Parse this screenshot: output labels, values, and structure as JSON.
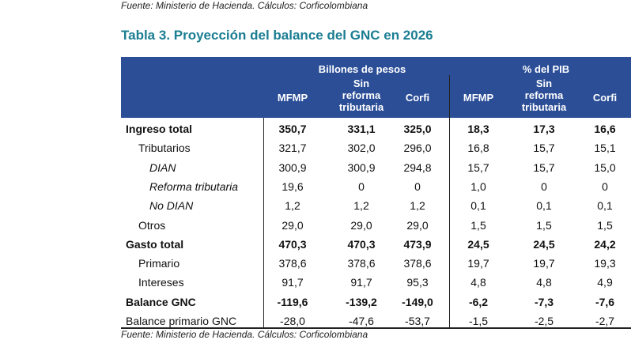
{
  "source_top": "Fuente: Ministerio de Hacienda. Cálculos: Corficolombiana",
  "title": "Tabla 3. Proyección del balance del GNC en 2026",
  "groups": [
    "Billones de pesos",
    "% del PIB"
  ],
  "columns": [
    "MFMP",
    "Sin reforma tributaria",
    "Corfi",
    "MFMP",
    "Sin reforma tributaria",
    "Corfi"
  ],
  "rows": [
    {
      "label": "Ingreso total",
      "style": "bold",
      "values": [
        "350,7",
        "331,1",
        "325,0",
        "18,3",
        "17,3",
        "16,6"
      ]
    },
    {
      "label": "Tributarios",
      "style": "i1",
      "values": [
        "321,7",
        "302,0",
        "296,0",
        "16,8",
        "15,7",
        "15,1"
      ]
    },
    {
      "label": "DIAN",
      "style": "i2",
      "values": [
        "300,9",
        "300,9",
        "294,8",
        "15,7",
        "15,7",
        "15,0"
      ]
    },
    {
      "label": "Reforma tributaria",
      "style": "i2",
      "values": [
        "19,6",
        "0",
        "0",
        "1,0",
        "0",
        "0"
      ]
    },
    {
      "label": "No DIAN",
      "style": "i2",
      "values": [
        "1,2",
        "1,2",
        "1,2",
        "0,1",
        "0,1",
        "0,1"
      ]
    },
    {
      "label": "Otros",
      "style": "i1",
      "values": [
        "29,0",
        "29,0",
        "29,0",
        "1,5",
        "1,5",
        "1,5"
      ]
    },
    {
      "label": "Gasto total",
      "style": "bold",
      "values": [
        "470,3",
        "470,3",
        "473,9",
        "24,5",
        "24,5",
        "24,2"
      ]
    },
    {
      "label": "Primario",
      "style": "i1",
      "values": [
        "378,6",
        "378,6",
        "378,6",
        "19,7",
        "19,7",
        "19,3"
      ]
    },
    {
      "label": "Intereses",
      "style": "i1",
      "values": [
        "91,7",
        "91,7",
        "95,3",
        "4,8",
        "4,8",
        "4,9"
      ]
    },
    {
      "label": "Balance GNC",
      "style": "bold",
      "values": [
        "-119,6",
        "-139,2",
        "-149,0",
        "-6,2",
        "-7,3",
        "-7,6"
      ]
    },
    {
      "label": "Balance primario GNC",
      "style": "",
      "values": [
        "-28,0",
        "-47,6",
        "-53,7",
        "-1,5",
        "-2,5",
        "-2,7"
      ]
    }
  ],
  "source_bottom": "Fuente: Ministerio de Hacienda. Cálculos: Corficolombiana"
}
